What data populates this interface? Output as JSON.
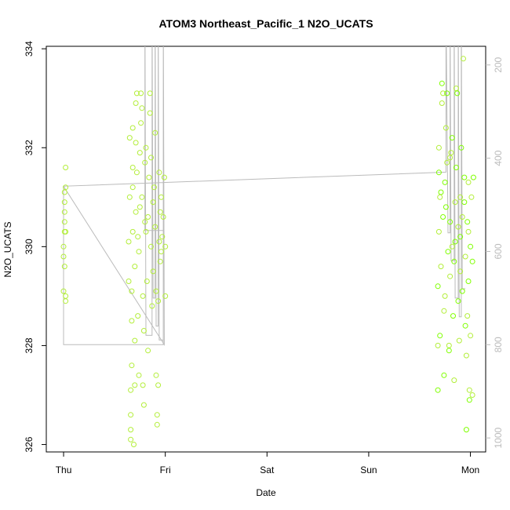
{
  "chart_data": {
    "type": "scatter",
    "title": "ATOM3 Northeast_Pacific_1 N2O_UCATS",
    "xlabel": "Date",
    "ylabel": "N2O_UCATS",
    "x_ticks": [
      "Thu",
      "Fri",
      "Sat",
      "Sun",
      "Mon"
    ],
    "y_ticks": [
      326,
      328,
      330,
      332,
      334
    ],
    "ylim": [
      325.85,
      334.05
    ],
    "y2_ticks": [
      200,
      400,
      600,
      800,
      1000
    ],
    "y2lim": [
      1030,
      160
    ],
    "xlim_days": [
      -0.17,
      4.15
    ],
    "point_color": "#b3ee3a",
    "point_color_alt": "#7fff00",
    "line_color": "#bbbbbb",
    "grid": false,
    "legend": "none",
    "series": [
      {
        "points": [
          [
            0.0,
            329.1
          ],
          [
            0.0,
            329.8
          ],
          [
            0.01,
            330.3
          ],
          [
            0.01,
            330.5
          ],
          [
            0.01,
            330.7
          ],
          [
            0.01,
            330.9
          ],
          [
            0.01,
            331.1
          ],
          [
            0.02,
            331.2
          ],
          [
            0.02,
            331.6
          ],
          [
            0.02,
            329.0
          ],
          [
            0.02,
            328.9
          ],
          [
            0.01,
            329.6
          ],
          [
            0.0,
            330.0
          ],
          [
            0.02,
            330.3
          ],
          [
            0.64,
            329.3
          ],
          [
            0.64,
            330.1
          ],
          [
            0.65,
            331.0
          ],
          [
            0.65,
            332.2
          ],
          [
            0.66,
            326.1
          ],
          [
            0.66,
            326.3
          ],
          [
            0.66,
            326.6
          ],
          [
            0.66,
            327.1
          ],
          [
            0.67,
            327.6
          ],
          [
            0.67,
            328.5
          ],
          [
            0.67,
            329.1
          ],
          [
            0.68,
            330.3
          ],
          [
            0.68,
            331.2
          ],
          [
            0.68,
            331.6
          ],
          [
            0.68,
            332.4
          ],
          [
            0.69,
            326.0
          ],
          [
            0.7,
            327.2
          ],
          [
            0.7,
            328.1
          ],
          [
            0.7,
            329.6
          ],
          [
            0.71,
            330.7
          ],
          [
            0.71,
            332.1
          ],
          [
            0.71,
            332.9
          ],
          [
            0.72,
            333.1
          ],
          [
            0.72,
            331.5
          ],
          [
            0.73,
            330.2
          ],
          [
            0.73,
            328.6
          ],
          [
            0.74,
            327.4
          ],
          [
            0.74,
            329.9
          ],
          [
            0.75,
            330.8
          ],
          [
            0.75,
            331.9
          ],
          [
            0.76,
            332.5
          ],
          [
            0.76,
            333.1
          ],
          [
            0.77,
            332.8
          ],
          [
            0.77,
            331.0
          ],
          [
            0.78,
            329.0
          ],
          [
            0.78,
            327.2
          ],
          [
            0.79,
            326.8
          ],
          [
            0.79,
            328.3
          ],
          [
            0.8,
            330.5
          ],
          [
            0.8,
            331.7
          ],
          [
            0.81,
            332.0
          ],
          [
            0.81,
            330.3
          ],
          [
            0.82,
            329.3
          ],
          [
            0.83,
            327.9
          ],
          [
            0.83,
            330.6
          ],
          [
            0.84,
            331.4
          ],
          [
            0.85,
            332.7
          ],
          [
            0.85,
            333.1
          ],
          [
            0.86,
            331.8
          ],
          [
            0.86,
            330.0
          ],
          [
            0.87,
            328.8
          ],
          [
            0.88,
            329.5
          ],
          [
            0.88,
            330.9
          ],
          [
            0.89,
            331.2
          ],
          [
            0.9,
            332.3
          ],
          [
            0.9,
            330.4
          ],
          [
            0.91,
            329.1
          ],
          [
            0.91,
            327.4
          ],
          [
            0.92,
            326.6
          ],
          [
            0.92,
            326.4
          ],
          [
            0.93,
            327.2
          ],
          [
            0.93,
            328.9
          ],
          [
            0.94,
            330.1
          ],
          [
            0.94,
            331.5
          ],
          [
            0.95,
            330.7
          ],
          [
            0.95,
            329.7
          ],
          [
            0.96,
            331.0
          ],
          [
            0.96,
            329.9
          ],
          [
            0.97,
            330.2
          ],
          [
            0.98,
            330.6
          ],
          [
            0.99,
            331.4
          ],
          [
            1.0,
            330.0
          ],
          [
            1.0,
            329.0
          ],
          [
            3.68,
            327.1
          ],
          [
            3.68,
            328.0
          ],
          [
            3.68,
            329.2
          ],
          [
            3.69,
            330.3
          ],
          [
            3.69,
            331.5
          ],
          [
            3.69,
            332.0
          ],
          [
            3.7,
            328.2
          ],
          [
            3.71,
            329.6
          ],
          [
            3.71,
            331.1
          ],
          [
            3.72,
            332.9
          ],
          [
            3.72,
            333.3
          ],
          [
            3.73,
            333.1
          ],
          [
            3.73,
            330.6
          ],
          [
            3.74,
            328.7
          ],
          [
            3.74,
            327.4
          ],
          [
            3.75,
            329.0
          ],
          [
            3.76,
            330.8
          ],
          [
            3.76,
            332.4
          ],
          [
            3.77,
            333.1
          ],
          [
            3.77,
            331.7
          ],
          [
            3.78,
            329.9
          ],
          [
            3.79,
            328.0
          ],
          [
            3.79,
            327.9
          ],
          [
            3.8,
            329.4
          ],
          [
            3.8,
            330.5
          ],
          [
            3.81,
            331.9
          ],
          [
            3.82,
            332.2
          ],
          [
            3.82,
            330.0
          ],
          [
            3.83,
            328.6
          ],
          [
            3.84,
            327.3
          ],
          [
            3.84,
            329.7
          ],
          [
            3.85,
            330.9
          ],
          [
            3.86,
            331.6
          ],
          [
            3.86,
            333.2
          ],
          [
            3.87,
            333.1
          ],
          [
            3.88,
            330.4
          ],
          [
            3.88,
            328.9
          ],
          [
            3.89,
            328.1
          ],
          [
            3.9,
            330.2
          ],
          [
            3.9,
            331.0
          ],
          [
            3.91,
            332.0
          ],
          [
            3.92,
            330.6
          ],
          [
            3.92,
            329.1
          ],
          [
            3.93,
            333.8
          ],
          [
            3.94,
            331.4
          ],
          [
            3.95,
            329.8
          ],
          [
            3.95,
            328.4
          ],
          [
            3.96,
            327.8
          ],
          [
            3.96,
            326.3
          ],
          [
            3.97,
            328.6
          ],
          [
            3.97,
            330.5
          ],
          [
            3.98,
            331.3
          ],
          [
            3.98,
            329.3
          ],
          [
            3.99,
            327.1
          ],
          [
            3.99,
            326.9
          ],
          [
            4.0,
            328.2
          ],
          [
            4.0,
            330.0
          ],
          [
            4.01,
            331.0
          ],
          [
            4.02,
            329.7
          ],
          [
            4.02,
            327.0
          ],
          [
            4.03,
            331.4
          ],
          [
            3.7,
            331.0
          ],
          [
            3.75,
            331.3
          ],
          [
            3.8,
            331.8
          ],
          [
            3.85,
            330.1
          ],
          [
            3.9,
            329.5
          ],
          [
            3.94,
            330.9
          ],
          [
            3.98,
            330.3
          ]
        ]
      }
    ],
    "altitude_trace": [
      [
        0.0,
        460
      ],
      [
        0.0,
        800
      ],
      [
        0.98,
        800
      ],
      [
        0.98,
        555
      ],
      [
        0.8,
        555
      ],
      [
        0.8,
        60
      ],
      [
        0.81,
        780
      ],
      [
        0.87,
        780
      ],
      [
        0.87,
        60
      ],
      [
        0.88,
        700
      ],
      [
        0.9,
        700
      ],
      [
        0.9,
        60
      ],
      [
        0.91,
        760
      ],
      [
        0.93,
        760
      ],
      [
        0.93,
        60
      ],
      [
        0.94,
        790
      ],
      [
        0.98,
        790
      ],
      [
        0.98,
        60
      ],
      [
        0.99,
        800
      ],
      [
        0.0,
        460
      ],
      [
        0.0,
        460
      ],
      [
        3.76,
        430
      ],
      [
        3.76,
        60
      ],
      [
        3.78,
        560
      ],
      [
        3.8,
        560
      ],
      [
        3.8,
        60
      ],
      [
        3.81,
        620
      ],
      [
        3.84,
        620
      ],
      [
        3.84,
        60
      ],
      [
        3.85,
        700
      ],
      [
        3.88,
        700
      ],
      [
        3.88,
        60
      ],
      [
        3.89,
        740
      ],
      [
        3.91,
        740
      ],
      [
        3.91,
        60
      ],
      [
        3.92,
        680
      ],
      [
        3.95,
        680
      ]
    ]
  }
}
